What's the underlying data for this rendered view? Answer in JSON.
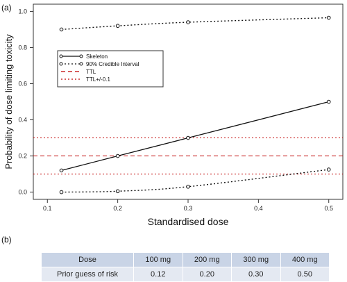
{
  "panel_a_label": "(a)",
  "panel_b_label": "(b)",
  "colors": {
    "ttl": "#c00000",
    "series": "#111111"
  },
  "chart_data": {
    "type": "line",
    "xlabel": "Standardised dose",
    "ylabel": "Probability of dose limiting toxicity",
    "xlim": [
      0.08,
      0.52
    ],
    "ylim": [
      -0.04,
      1.04
    ],
    "xticks": [
      0.1,
      0.2,
      0.3,
      0.4,
      0.5
    ],
    "yticks": [
      0.0,
      0.2,
      0.4,
      0.6,
      0.8,
      1.0
    ],
    "grid": false,
    "legend_position": "upper-left",
    "x": [
      0.12,
      0.2,
      0.3,
      0.5
    ],
    "series": [
      {
        "name": "Skeleton",
        "style": "solid",
        "color": "#111111",
        "markers": true,
        "values": [
          0.12,
          0.2,
          0.3,
          0.5
        ]
      },
      {
        "name": "90% Credible Interval",
        "style": "dotted",
        "color": "#111111",
        "markers": true,
        "values": [
          0.9,
          0.92,
          0.94,
          0.965
        ]
      },
      {
        "name": "",
        "style": "dotted",
        "color": "#111111",
        "markers": true,
        "values": [
          0.0,
          0.005,
          0.03,
          0.125
        ]
      }
    ],
    "hlines": [
      {
        "name": "TTL",
        "y": 0.2,
        "style": "dashed",
        "color": "#c00000"
      },
      {
        "name": "TTL+/-0.1",
        "y": 0.3,
        "style": "dotted",
        "color": "#c00000"
      },
      {
        "name": "",
        "y": 0.1,
        "style": "dotted",
        "color": "#c00000"
      }
    ]
  },
  "table": {
    "header": [
      "Dose",
      "100 mg",
      "200 mg",
      "300 mg",
      "400 mg"
    ],
    "row": [
      "Prior guess of risk",
      "0.12",
      "0.20",
      "0.30",
      "0.50"
    ]
  }
}
